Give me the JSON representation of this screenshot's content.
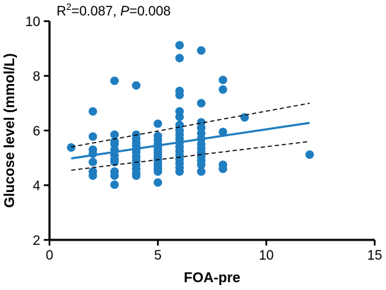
{
  "chart_data": {
    "type": "scatter",
    "title": "",
    "annotation": {
      "r_prefix": "R",
      "r_superscript": "2",
      "r_value": "=0.087, ",
      "p_label": "P",
      "p_value": "=0.008"
    },
    "xlabel": "FOA-pre",
    "ylabel": "Glucose level (mmol/L)",
    "xlim": [
      0,
      15
    ],
    "ylim": [
      2,
      10
    ],
    "xticks": [
      0,
      5,
      10,
      15
    ],
    "yticks": [
      2,
      4,
      6,
      8,
      10
    ],
    "grid": false,
    "point_color": "#1f7dc0",
    "points": [
      [
        1,
        5.38
      ],
      [
        2,
        6.7
      ],
      [
        2,
        5.78
      ],
      [
        2,
        5.3
      ],
      [
        2,
        5.15
      ],
      [
        2,
        4.85
      ],
      [
        2,
        4.5
      ],
      [
        2,
        4.35
      ],
      [
        3,
        7.82
      ],
      [
        3,
        5.85
      ],
      [
        3,
        5.6
      ],
      [
        3,
        5.5
      ],
      [
        3,
        5.3
      ],
      [
        3,
        5.1
      ],
      [
        3,
        4.95
      ],
      [
        3,
        4.85
      ],
      [
        3,
        4.5
      ],
      [
        3,
        4.35
      ],
      [
        3,
        4.02
      ],
      [
        4,
        7.65
      ],
      [
        4,
        5.85
      ],
      [
        4,
        5.7
      ],
      [
        4,
        5.55
      ],
      [
        4,
        5.45
      ],
      [
        4,
        5.3
      ],
      [
        4,
        5.2
      ],
      [
        4,
        5.05
      ],
      [
        4,
        4.9
      ],
      [
        4,
        4.75
      ],
      [
        4,
        4.6
      ],
      [
        4,
        4.45
      ],
      [
        4,
        4.35
      ],
      [
        5,
        6.25
      ],
      [
        5,
        5.8
      ],
      [
        5,
        5.65
      ],
      [
        5,
        5.5
      ],
      [
        5,
        5.4
      ],
      [
        5,
        5.3
      ],
      [
        5,
        5.2
      ],
      [
        5,
        5.1
      ],
      [
        5,
        5.0
      ],
      [
        5,
        4.9
      ],
      [
        5,
        4.8
      ],
      [
        5,
        4.7
      ],
      [
        5,
        4.6
      ],
      [
        5,
        4.5
      ],
      [
        5,
        4.1
      ],
      [
        6,
        9.12
      ],
      [
        6,
        8.65
      ],
      [
        6,
        7.45
      ],
      [
        6,
        7.3
      ],
      [
        6,
        6.7
      ],
      [
        6,
        6.5
      ],
      [
        6,
        6.2
      ],
      [
        6,
        6.0
      ],
      [
        6,
        5.85
      ],
      [
        6,
        5.7
      ],
      [
        6,
        5.55
      ],
      [
        6,
        5.4
      ],
      [
        6,
        5.25
      ],
      [
        6,
        5.1
      ],
      [
        6,
        4.95
      ],
      [
        6,
        4.8
      ],
      [
        6,
        4.65
      ],
      [
        6,
        4.5
      ],
      [
        7,
        8.93
      ],
      [
        7,
        7.0
      ],
      [
        7,
        6.3
      ],
      [
        7,
        6.1
      ],
      [
        7,
        5.9
      ],
      [
        7,
        5.7
      ],
      [
        7,
        5.5
      ],
      [
        7,
        5.35
      ],
      [
        7,
        5.2
      ],
      [
        7,
        5.05
      ],
      [
        7,
        4.9
      ],
      [
        7,
        4.75
      ],
      [
        7,
        4.5
      ],
      [
        8,
        7.85
      ],
      [
        8,
        7.5
      ],
      [
        8,
        5.95
      ],
      [
        8,
        4.75
      ],
      [
        8,
        4.6
      ],
      [
        9,
        6.48
      ],
      [
        12,
        5.12
      ]
    ],
    "fit_line": {
      "x": [
        1,
        12
      ],
      "y": [
        4.98,
        6.28
      ],
      "color": "#1f7dc0"
    },
    "ci_upper": {
      "x": [
        1,
        12
      ],
      "y": [
        5.4,
        7.0
      ]
    },
    "ci_lower": {
      "x": [
        1,
        12
      ],
      "y": [
        4.55,
        5.6
      ]
    }
  }
}
